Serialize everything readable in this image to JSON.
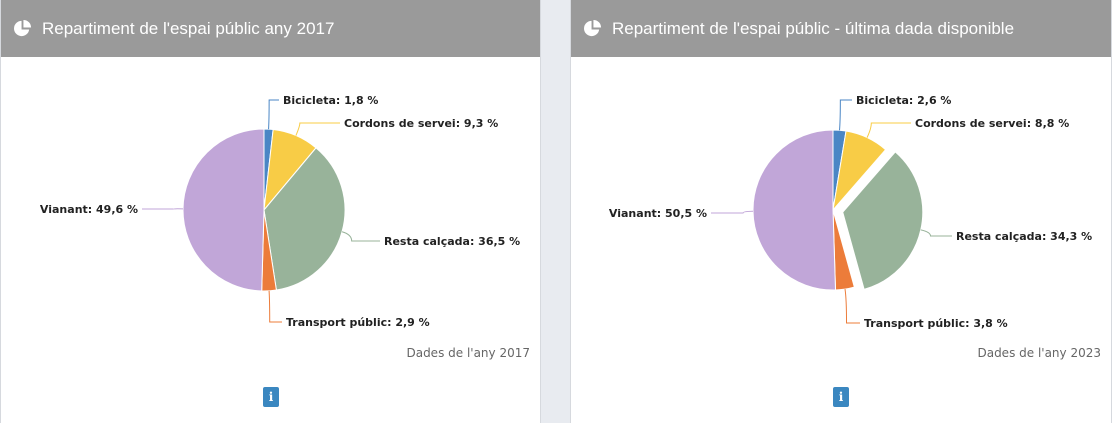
{
  "panels": [
    {
      "title": "Repartiment de l'espai públic any 2017",
      "footnote": "Dades de l'any 2017",
      "info_label": "i"
    },
    {
      "title": "Repartiment de l'espai públic - última dada disponible",
      "footnote": "Dades de l'any 2023",
      "info_label": "i"
    }
  ],
  "chart_data": [
    {
      "type": "pie",
      "title": "Repartiment de l'espai públic any 2017",
      "slices": [
        {
          "label": "Bicicleta",
          "value": 1.8,
          "display": "1,8 %",
          "color": "#4a86c5"
        },
        {
          "label": "Cordons de servei",
          "value": 9.3,
          "display": "9,3 %",
          "color": "#f8cc46"
        },
        {
          "label": "Resta calçada",
          "value": 36.5,
          "display": "36,5 %",
          "color": "#98b39a"
        },
        {
          "label": "Transport públic",
          "value": 2.9,
          "display": "2,9 %",
          "color": "#ec7c3a"
        },
        {
          "label": "Vianant",
          "value": 49.6,
          "display": "49,6 %",
          "color": "#c1a6d8"
        }
      ]
    },
    {
      "type": "pie",
      "title": "Repartiment de l'espai públic - última dada disponible",
      "slices": [
        {
          "label": "Bicicleta",
          "value": 2.6,
          "display": "2,6 %",
          "color": "#4a86c5"
        },
        {
          "label": "Cordons de servei",
          "value": 8.8,
          "display": "8,8 %",
          "color": "#f8cc46"
        },
        {
          "label": "Resta calçada",
          "value": 34.3,
          "display": "34,3 %",
          "color": "#98b39a",
          "exploded": true
        },
        {
          "label": "Transport públic",
          "value": 3.8,
          "display": "3,8 %",
          "color": "#ec7c3a"
        },
        {
          "label": "Vianant",
          "value": 50.5,
          "display": "50,5 %",
          "color": "#c1a6d8"
        }
      ]
    }
  ]
}
